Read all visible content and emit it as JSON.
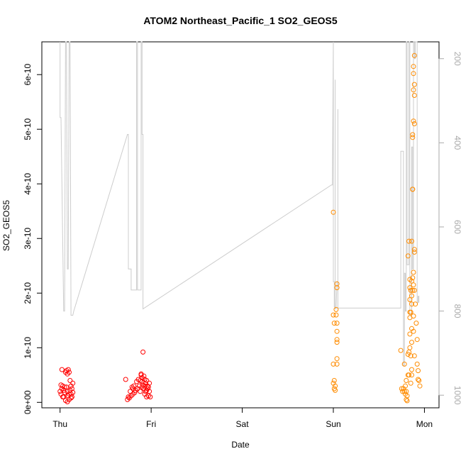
{
  "chart_data": {
    "type": "scatter",
    "title": "ATOM2 Northeast_Pacific_1 SO2_GEOS5",
    "xlabel": "Date",
    "ylabel": "SO2_GEOS5",
    "x_ticks": [
      "Thu",
      "Fri",
      "Sat",
      "Sun",
      "Mon"
    ],
    "x_tick_days": [
      0,
      1,
      2,
      3,
      4
    ],
    "xlim_days": [
      -0.2,
      4.16
    ],
    "y_ticks": [
      0,
      1e-10,
      2e-10,
      3e-10,
      4e-10,
      5e-10,
      6e-10
    ],
    "y_tick_labels": [
      "0e+00",
      "1e-10",
      "2e-10",
      "3e-10",
      "4e-10",
      "5e-10",
      "6e-10"
    ],
    "ylim": [
      -1e-11,
      6.6e-10
    ],
    "y2_label_color": "#aaaaaa",
    "y2_ticks": [
      200,
      400,
      600,
      800,
      1000
    ],
    "y2_tick_labels": [
      "200",
      "400",
      "600",
      "800",
      "1000"
    ],
    "y2_lim": [
      1030,
      160
    ],
    "colors": {
      "series_red": "#ff0000",
      "series_orange": "#ff8c00",
      "pressure_line": "#cccccc"
    },
    "series": [
      {
        "color": "#ff0000",
        "points": [
          [
            0.0,
            2e-11
          ],
          [
            0.01,
            1.5e-11
          ],
          [
            0.02,
            2.5e-11
          ],
          [
            0.02,
            6e-11
          ],
          [
            0.03,
            3e-11
          ],
          [
            0.04,
            1e-11
          ],
          [
            0.04,
            2.2e-11
          ],
          [
            0.05,
            1.8e-11
          ],
          [
            0.06,
            3.5e-12
          ],
          [
            0.06,
            5.5e-11
          ],
          [
            0.07,
            5.8e-11
          ],
          [
            0.07,
            2.8e-11
          ],
          [
            0.08,
            2e-11
          ],
          [
            0.08,
            5.2e-11
          ],
          [
            0.09,
            1.2e-11
          ],
          [
            0.09,
            6e-11
          ],
          [
            0.1,
            5.5e-11
          ],
          [
            0.1,
            1.5e-11
          ],
          [
            0.11,
            2.2e-11
          ],
          [
            0.11,
            4e-11
          ],
          [
            0.12,
            8e-12
          ],
          [
            0.12,
            3e-11
          ],
          [
            0.13,
            2.5e-11
          ],
          [
            0.13,
            1e-11
          ],
          [
            0.14,
            3.5e-11
          ],
          [
            0.14,
            1.8e-11
          ],
          [
            0.01,
            3.2e-11
          ],
          [
            0.03,
            1e-11
          ],
          [
            0.05,
            2.8e-11
          ],
          [
            0.08,
            1e-12
          ],
          [
            0.1,
            5e-12
          ],
          [
            0.12,
            1.5e-11
          ],
          [
            0.72,
            4.2e-11
          ],
          [
            0.74,
            5e-12
          ],
          [
            0.75,
            1e-11
          ],
          [
            0.76,
            8e-12
          ],
          [
            0.77,
            2e-11
          ],
          [
            0.78,
            1.2e-11
          ],
          [
            0.79,
            2.8e-11
          ],
          [
            0.8,
            1.5e-11
          ],
          [
            0.8,
            2.5e-11
          ],
          [
            0.81,
            3e-11
          ],
          [
            0.82,
            1.8e-11
          ],
          [
            0.83,
            2.2e-11
          ],
          [
            0.84,
            3.8e-11
          ],
          [
            0.85,
            2.5e-11
          ],
          [
            0.86,
            4.2e-11
          ],
          [
            0.87,
            3e-11
          ],
          [
            0.88,
            4e-11
          ],
          [
            0.88,
            2e-11
          ],
          [
            0.89,
            5e-11
          ],
          [
            0.9,
            4.5e-11
          ],
          [
            0.9,
            2.8e-11
          ],
          [
            0.91,
            3.2e-11
          ],
          [
            0.91,
            9.2e-11
          ],
          [
            0.92,
            4.8e-11
          ],
          [
            0.92,
            2.5e-11
          ],
          [
            0.93,
            3e-11
          ],
          [
            0.93,
            1.5e-11
          ],
          [
            0.94,
            3.5e-11
          ],
          [
            0.94,
            2e-11
          ],
          [
            0.95,
            4e-11
          ],
          [
            0.95,
            1e-11
          ],
          [
            0.96,
            2.5e-11
          ],
          [
            0.96,
            3e-11
          ],
          [
            0.97,
            1.2e-11
          ],
          [
            0.97,
            2.8e-11
          ],
          [
            0.98,
            3.5e-11
          ],
          [
            0.98,
            2e-11
          ],
          [
            0.99,
            1e-11
          ],
          [
            0.89,
            5.2e-11
          ],
          [
            0.9,
            3.8e-11
          ],
          [
            0.93,
            4.2e-11
          ],
          [
            0.95,
            2.2e-11
          ]
        ]
      },
      {
        "color": "#ff8c00",
        "points": [
          [
            3.0,
            3.48e-10
          ],
          [
            3.0,
            1.6e-10
          ],
          [
            3.01,
            1.45e-10
          ],
          [
            3.0,
            7e-11
          ],
          [
            3.01,
            4e-11
          ],
          [
            3.0,
            3.5e-11
          ],
          [
            3.01,
            2.5e-11
          ],
          [
            3.02,
            2.2e-11
          ],
          [
            3.02,
            3e-11
          ],
          [
            3.03,
            1.7e-10
          ],
          [
            3.04,
            2.17e-10
          ],
          [
            3.04,
            2.1e-10
          ],
          [
            3.03,
            1.6e-10
          ],
          [
            3.04,
            1.45e-10
          ],
          [
            3.04,
            1.3e-10
          ],
          [
            3.04,
            1.15e-10
          ],
          [
            3.04,
            1.1e-10
          ],
          [
            3.04,
            8e-11
          ],
          [
            3.04,
            7e-11
          ],
          [
            3.74,
            9.5e-11
          ],
          [
            3.75,
            2.5e-11
          ],
          [
            3.76,
            2e-11
          ],
          [
            3.77,
            2.5e-11
          ],
          [
            3.78,
            7e-11
          ],
          [
            3.78,
            2e-11
          ],
          [
            3.79,
            3e-11
          ],
          [
            3.79,
            1.5e-11
          ],
          [
            3.8,
            2e-11
          ],
          [
            3.8,
            4e-11
          ],
          [
            3.8,
            5e-12
          ],
          [
            3.81,
            1.2e-11
          ],
          [
            3.81,
            3e-12
          ],
          [
            3.82,
            2.68e-10
          ],
          [
            3.82,
            5e-11
          ],
          [
            3.82,
            8.8e-11
          ],
          [
            3.83,
            2.95e-10
          ],
          [
            3.83,
            9.2e-11
          ],
          [
            3.83,
            5e-11
          ],
          [
            3.84,
            2.25e-10
          ],
          [
            3.84,
            2.1e-10
          ],
          [
            3.84,
            1.88e-10
          ],
          [
            3.84,
            1.65e-10
          ],
          [
            3.84,
            1.55e-10
          ],
          [
            3.84,
            1.25e-10
          ],
          [
            3.84,
            1e-10
          ],
          [
            3.85,
            2.05e-10
          ],
          [
            3.85,
            1.65e-10
          ],
          [
            3.85,
            8.5e-11
          ],
          [
            3.85,
            3.5e-11
          ],
          [
            3.86,
            2.95e-10
          ],
          [
            3.86,
            2.22e-10
          ],
          [
            3.86,
            1.95e-10
          ],
          [
            3.86,
            1.8e-10
          ],
          [
            3.86,
            1.35e-10
          ],
          [
            3.86,
            1.1e-10
          ],
          [
            3.86,
            6e-11
          ],
          [
            3.87,
            4.85e-10
          ],
          [
            3.87,
            4.9e-10
          ],
          [
            3.87,
            3.9e-10
          ],
          [
            3.87,
            3.9e-10
          ],
          [
            3.87,
            2.28e-10
          ],
          [
            3.87,
            2.05e-10
          ],
          [
            3.88,
            6.15e-10
          ],
          [
            3.88,
            6.02e-10
          ],
          [
            3.88,
            5.72e-10
          ],
          [
            3.88,
            5.15e-10
          ],
          [
            3.88,
            2.38e-10
          ],
          [
            3.88,
            2.15e-10
          ],
          [
            3.88,
            1.58e-10
          ],
          [
            3.88,
            1.3e-10
          ],
          [
            3.89,
            6.35e-10
          ],
          [
            3.89,
            5.82e-10
          ],
          [
            3.89,
            5.62e-10
          ],
          [
            3.89,
            5.1e-10
          ],
          [
            3.89,
            2.8e-10
          ],
          [
            3.89,
            2.75e-10
          ],
          [
            3.89,
            2.05e-10
          ],
          [
            3.9,
            1.8e-10
          ],
          [
            3.91,
            1.45e-10
          ],
          [
            3.92,
            1.15e-10
          ],
          [
            3.92,
            7e-11
          ],
          [
            3.93,
            5.8e-11
          ],
          [
            3.93,
            4.2e-11
          ],
          [
            3.94,
            4e-11
          ],
          [
            3.95,
            3e-11
          ],
          [
            3.89,
            8.5e-11
          ],
          [
            3.86,
            5e-11
          ]
        ]
      }
    ],
    "pressure_line": [
      [
        0.0,
        160
      ],
      [
        0.0,
        340
      ],
      [
        0.01,
        340
      ],
      [
        0.04,
        800
      ],
      [
        0.05,
        800
      ],
      [
        0.06,
        160
      ],
      [
        0.07,
        160
      ],
      [
        0.08,
        700
      ],
      [
        0.09,
        700
      ],
      [
        0.1,
        160
      ],
      [
        0.11,
        160
      ],
      [
        0.12,
        810
      ],
      [
        0.14,
        810
      ],
      [
        0.15,
        800
      ],
      [
        0.74,
        380
      ],
      [
        0.75,
        380
      ],
      [
        0.75,
        700
      ],
      [
        0.78,
        700
      ],
      [
        0.78,
        750
      ],
      [
        0.84,
        750
      ],
      [
        0.84,
        160
      ],
      [
        0.85,
        160
      ],
      [
        0.85,
        750
      ],
      [
        0.89,
        750
      ],
      [
        0.89,
        160
      ],
      [
        0.9,
        160
      ],
      [
        0.9,
        380
      ],
      [
        0.91,
        380
      ],
      [
        0.91,
        795
      ],
      [
        2.98,
        500
      ],
      [
        2.99,
        500
      ],
      [
        3.0,
        160
      ],
      [
        3.0,
        730
      ],
      [
        3.01,
        730
      ],
      [
        3.01,
        790
      ],
      [
        3.02,
        790
      ],
      [
        3.02,
        250
      ],
      [
        3.02,
        795
      ],
      [
        3.03,
        795
      ],
      [
        3.04,
        730
      ],
      [
        3.05,
        730
      ],
      [
        3.05,
        320
      ],
      [
        3.05,
        793
      ],
      [
        3.74,
        793
      ],
      [
        3.74,
        420
      ],
      [
        3.77,
        420
      ],
      [
        3.77,
        930
      ],
      [
        3.78,
        930
      ],
      [
        3.78,
        710
      ],
      [
        3.79,
        710
      ],
      [
        3.79,
        800
      ],
      [
        3.8,
        800
      ],
      [
        3.8,
        160
      ],
      [
        3.81,
        160
      ],
      [
        3.81,
        690
      ],
      [
        3.83,
        690
      ],
      [
        3.83,
        160
      ],
      [
        3.84,
        160
      ],
      [
        3.84,
        810
      ],
      [
        3.86,
        810
      ],
      [
        3.86,
        410
      ],
      [
        3.87,
        410
      ],
      [
        3.87,
        700
      ],
      [
        3.88,
        700
      ],
      [
        3.88,
        160
      ],
      [
        3.89,
        160
      ],
      [
        3.89,
        200
      ],
      [
        3.9,
        200
      ],
      [
        3.9,
        160
      ],
      [
        3.92,
        160
      ],
      [
        3.92,
        780
      ],
      [
        3.93,
        780
      ],
      [
        3.93,
        765
      ],
      [
        3.94,
        765
      ],
      [
        3.94,
        780
      ]
    ]
  }
}
